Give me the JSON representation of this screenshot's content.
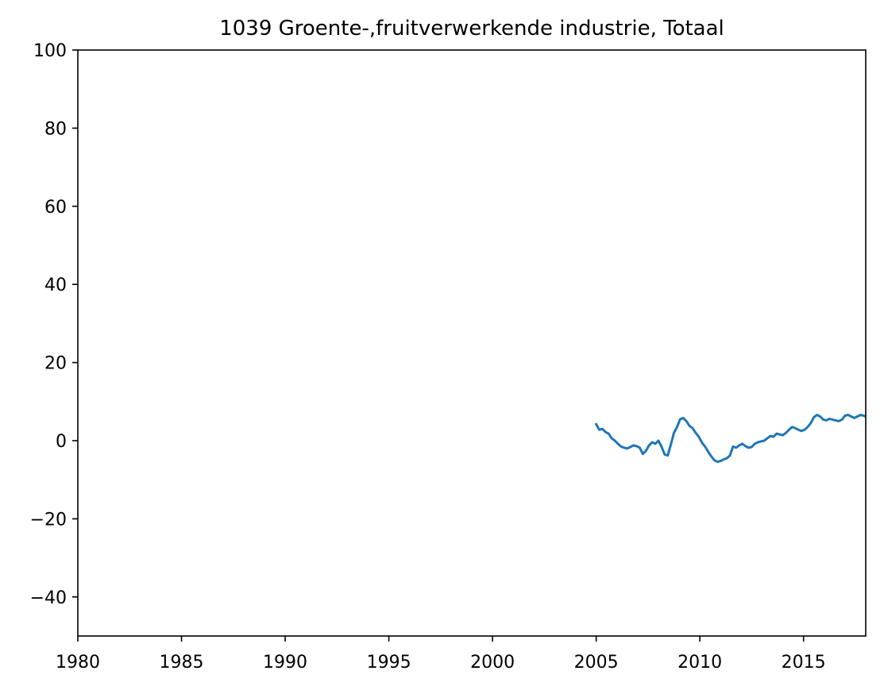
{
  "chart_data": {
    "type": "line",
    "title": "1039 Groente-,fruitverwerkende industrie, Totaal",
    "xlabel": "",
    "ylabel": "",
    "xlim": [
      1980,
      2018
    ],
    "ylim": [
      -50,
      100
    ],
    "xticks": [
      1980,
      1985,
      1990,
      1995,
      2000,
      2005,
      2010,
      2015
    ],
    "xtick_labels": [
      "1980",
      "1985",
      "1990",
      "1995",
      "2000",
      "2005",
      "2010",
      "2015"
    ],
    "yticks": [
      -40,
      -20,
      0,
      20,
      40,
      60,
      80,
      100
    ],
    "ytick_labels": [
      "−40",
      "−20",
      "0",
      "20",
      "40",
      "60",
      "80",
      "100"
    ],
    "grid": false,
    "legend": "none",
    "series": [
      {
        "color": "#1f77b4",
        "x": [
          2005.0,
          2005.15,
          2005.3,
          2005.45,
          2005.6,
          2005.75,
          2005.9,
          2006.05,
          2006.2,
          2006.35,
          2006.5,
          2006.65,
          2006.8,
          2006.95,
          2007.1,
          2007.25,
          2007.4,
          2007.55,
          2007.7,
          2007.85,
          2008.0,
          2008.15,
          2008.3,
          2008.45,
          2008.6,
          2008.75,
          2008.9,
          2009.05,
          2009.2,
          2009.35,
          2009.5,
          2009.65,
          2009.8,
          2009.95,
          2010.1,
          2010.25,
          2010.4,
          2010.55,
          2010.7,
          2010.85,
          2011.0,
          2011.15,
          2011.3,
          2011.45,
          2011.6,
          2011.75,
          2011.9,
          2012.05,
          2012.2,
          2012.35,
          2012.5,
          2012.65,
          2012.8,
          2012.95,
          2013.1,
          2013.25,
          2013.4,
          2013.55,
          2013.7,
          2013.85,
          2014.0,
          2014.15,
          2014.3,
          2014.45,
          2014.6,
          2014.75,
          2014.9,
          2015.05,
          2015.2,
          2015.35,
          2015.5,
          2015.65,
          2015.8,
          2015.95,
          2016.1,
          2016.25,
          2016.4,
          2016.55,
          2016.7,
          2016.85,
          2017.0,
          2017.15,
          2017.3,
          2017.45,
          2017.6,
          2017.75,
          2017.9,
          2018.0
        ],
        "y": [
          4.2,
          2.8,
          3.0,
          2.2,
          1.8,
          0.6,
          0.0,
          -0.8,
          -1.5,
          -1.8,
          -2.0,
          -1.6,
          -1.2,
          -1.4,
          -1.8,
          -3.4,
          -2.6,
          -1.2,
          -0.4,
          -0.8,
          0.0,
          -1.5,
          -3.5,
          -3.8,
          -1.0,
          2.0,
          3.5,
          5.5,
          5.8,
          5.0,
          3.8,
          3.2,
          2.0,
          1.0,
          -0.5,
          -1.5,
          -2.8,
          -4.0,
          -5.0,
          -5.4,
          -5.2,
          -4.8,
          -4.5,
          -3.8,
          -1.5,
          -1.8,
          -1.2,
          -0.8,
          -1.4,
          -1.8,
          -1.6,
          -0.8,
          -0.4,
          -0.2,
          0.0,
          0.6,
          1.2,
          1.0,
          1.8,
          1.6,
          1.4,
          2.0,
          2.8,
          3.5,
          3.2,
          2.8,
          2.5,
          2.8,
          3.5,
          4.5,
          6.0,
          6.6,
          6.2,
          5.4,
          5.2,
          5.6,
          5.4,
          5.2,
          5.0,
          5.4,
          6.4,
          6.6,
          6.2,
          5.8,
          6.2,
          6.6,
          6.4,
          6.2
        ]
      }
    ]
  }
}
